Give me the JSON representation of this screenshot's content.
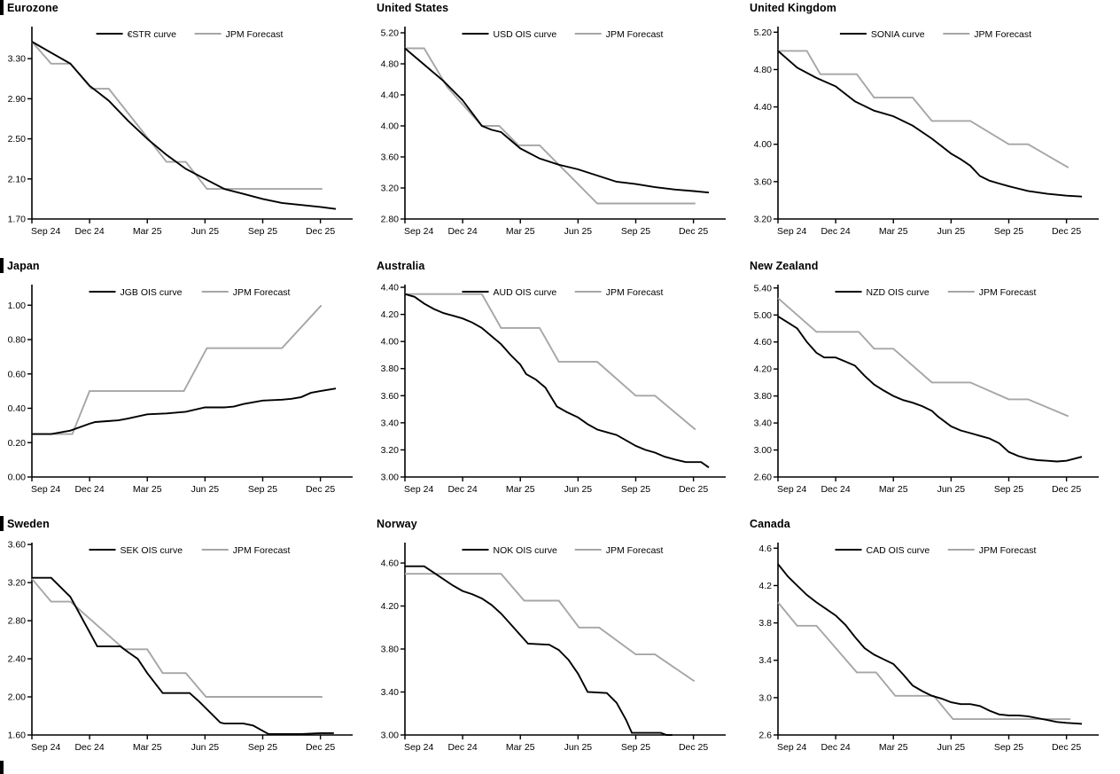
{
  "page": {
    "background": "#ffffff",
    "has_bottom_left_section_bar": true
  },
  "colors": {
    "series_market": "#000000",
    "series_forecast": "#a6a6a6",
    "axis": "#000000",
    "text": "#000000"
  },
  "x_axis": {
    "tick_labels": [
      "Sep 24",
      "Dec 24",
      "Mar 25",
      "Jun 25",
      "Sep 25",
      "Dec 25"
    ],
    "tick_positions_months": [
      0,
      3,
      6,
      9,
      12,
      15
    ],
    "xlim": [
      0,
      16.4
    ]
  },
  "chart_data": [
    {
      "type": "line",
      "title": "Eurozone",
      "has_title_bar": true,
      "ylim": [
        1.7,
        3.62
      ],
      "yticks": [
        1.7,
        2.1,
        2.5,
        2.9,
        3.3
      ],
      "ytick_decimals": 2,
      "series": [
        {
          "name": "JPM Forecast",
          "role": "forecast",
          "x": [
            0,
            1,
            2,
            3.1,
            4,
            7,
            8,
            9.1,
            15.1
          ],
          "y": [
            3.47,
            3.25,
            3.25,
            3.0,
            3.0,
            2.27,
            2.27,
            2.0,
            2.0
          ]
        },
        {
          "name": "€STR curve",
          "role": "market",
          "x": [
            0,
            1,
            2,
            3,
            4,
            5,
            6,
            7,
            8,
            9,
            10,
            11,
            12,
            13,
            14,
            15,
            15.8
          ],
          "y": [
            3.47,
            3.36,
            3.25,
            3.03,
            2.88,
            2.68,
            2.5,
            2.34,
            2.2,
            2.1,
            2.0,
            1.95,
            1.9,
            1.86,
            1.84,
            1.82,
            1.8
          ]
        }
      ]
    },
    {
      "type": "line",
      "title": "United States",
      "has_title_bar": false,
      "ylim": [
        2.8,
        5.28
      ],
      "yticks": [
        2.8,
        3.2,
        3.6,
        4.0,
        4.4,
        4.8,
        5.2
      ],
      "ytick_decimals": 2,
      "series": [
        {
          "name": "JPM Forecast",
          "role": "forecast",
          "x": [
            0,
            1,
            2.2,
            4,
            4.9,
            5.9,
            7,
            10,
            15.1
          ],
          "y": [
            5.0,
            5.0,
            4.5,
            4.0,
            4.0,
            3.75,
            3.75,
            3.0,
            3.0
          ]
        },
        {
          "name": "USD OIS curve",
          "role": "market",
          "x": [
            0,
            1,
            2,
            3,
            4,
            4.5,
            5,
            6,
            7,
            8,
            9,
            10,
            11,
            12,
            13,
            14,
            15,
            15.8
          ],
          "y": [
            5.0,
            4.79,
            4.58,
            4.33,
            4.0,
            3.95,
            3.92,
            3.71,
            3.58,
            3.5,
            3.44,
            3.36,
            3.28,
            3.25,
            3.21,
            3.18,
            3.16,
            3.14
          ]
        }
      ]
    },
    {
      "type": "line",
      "title": "United Kingdom",
      "has_title_bar": false,
      "ylim": [
        3.2,
        5.26
      ],
      "yticks": [
        3.2,
        3.6,
        4.0,
        4.4,
        4.8,
        5.2
      ],
      "ytick_decimals": 2,
      "series": [
        {
          "name": "JPM Forecast",
          "role": "forecast",
          "x": [
            0,
            1.5,
            2.2,
            4.1,
            5,
            7,
            8,
            10,
            12,
            13,
            15.1
          ],
          "y": [
            5.0,
            5.0,
            4.75,
            4.75,
            4.5,
            4.5,
            4.25,
            4.25,
            4.0,
            4.0,
            3.75
          ]
        },
        {
          "name": "SONIA curve",
          "role": "market",
          "x": [
            0,
            1,
            2,
            3,
            4,
            5,
            6,
            7,
            8,
            8.5,
            9,
            9.5,
            10,
            10.5,
            11,
            11.5,
            12,
            13,
            14,
            15,
            15.8
          ],
          "y": [
            5.0,
            4.82,
            4.71,
            4.62,
            4.46,
            4.36,
            4.3,
            4.2,
            4.06,
            3.98,
            3.9,
            3.84,
            3.77,
            3.66,
            3.61,
            3.58,
            3.55,
            3.5,
            3.47,
            3.45,
            3.44
          ]
        }
      ]
    },
    {
      "type": "line",
      "title": "Japan",
      "has_title_bar": true,
      "ylim": [
        0.0,
        1.12
      ],
      "yticks": [
        0.0,
        0.2,
        0.4,
        0.6,
        0.8,
        1.0
      ],
      "ytick_decimals": 2,
      "series": [
        {
          "name": "JPM Forecast",
          "role": "forecast",
          "x": [
            0,
            2.1,
            3,
            7.9,
            9.1,
            13,
            15.05
          ],
          "y": [
            0.25,
            0.25,
            0.5,
            0.5,
            0.75,
            0.75,
            1.0
          ]
        },
        {
          "name": "JGB OIS curve",
          "role": "market",
          "x": [
            0,
            1,
            2,
            3,
            3.3,
            4.5,
            5,
            6,
            7,
            8,
            9,
            10,
            10.5,
            11,
            12,
            13,
            13.5,
            14,
            14.5,
            15,
            15.8
          ],
          "y": [
            0.25,
            0.25,
            0.27,
            0.31,
            0.32,
            0.33,
            0.34,
            0.365,
            0.37,
            0.38,
            0.405,
            0.405,
            0.41,
            0.425,
            0.445,
            0.45,
            0.455,
            0.465,
            0.49,
            0.5,
            0.515
          ]
        }
      ]
    },
    {
      "type": "line",
      "title": "Australia",
      "has_title_bar": false,
      "ylim": [
        3.0,
        4.42
      ],
      "yticks": [
        3.0,
        3.2,
        3.4,
        3.6,
        3.8,
        4.0,
        4.2,
        4.4
      ],
      "ytick_decimals": 2,
      "series": [
        {
          "name": "JPM Forecast",
          "role": "forecast",
          "x": [
            0,
            4,
            5,
            7,
            8,
            10,
            12,
            13,
            15.1
          ],
          "y": [
            4.35,
            4.35,
            4.1,
            4.1,
            3.85,
            3.85,
            3.6,
            3.6,
            3.35
          ]
        },
        {
          "name": "AUD OIS curve",
          "role": "market",
          "x": [
            0,
            0.5,
            1,
            1.5,
            2,
            2.5,
            3,
            3.5,
            4,
            4.5,
            5,
            5.5,
            6,
            6.3,
            6.8,
            7.3,
            7.9,
            8.4,
            9,
            9.5,
            10,
            10.5,
            11,
            11.5,
            12,
            12.5,
            13,
            13.5,
            14,
            14.6,
            15.4,
            15.8
          ],
          "y": [
            4.35,
            4.33,
            4.28,
            4.24,
            4.21,
            4.19,
            4.17,
            4.14,
            4.1,
            4.04,
            3.98,
            3.9,
            3.83,
            3.76,
            3.72,
            3.66,
            3.52,
            3.48,
            3.44,
            3.39,
            3.35,
            3.33,
            3.31,
            3.27,
            3.23,
            3.2,
            3.18,
            3.15,
            3.13,
            3.11,
            3.11,
            3.07
          ]
        }
      ]
    },
    {
      "type": "line",
      "title": "New Zealand",
      "has_title_bar": false,
      "ylim": [
        2.6,
        5.45
      ],
      "yticks": [
        2.6,
        3.0,
        3.4,
        3.8,
        4.2,
        4.6,
        5.0,
        5.4
      ],
      "ytick_decimals": 2,
      "series": [
        {
          "name": "JPM Forecast",
          "role": "forecast",
          "x": [
            0,
            2,
            4.2,
            5,
            6,
            8,
            10,
            12,
            13,
            15.1
          ],
          "y": [
            5.25,
            4.75,
            4.75,
            4.5,
            4.5,
            4.0,
            4.0,
            3.75,
            3.75,
            3.5
          ]
        },
        {
          "name": "NZD OIS curve",
          "role": "market",
          "x": [
            0,
            0.5,
            1,
            1.5,
            2,
            2.4,
            3,
            3.5,
            4,
            4.5,
            5,
            5.5,
            6,
            6.5,
            7,
            7.5,
            8,
            8.3,
            9,
            9.5,
            10,
            10.5,
            11,
            11.5,
            12,
            12.5,
            13,
            13.5,
            14,
            14.5,
            15,
            15.4,
            15.8
          ],
          "y": [
            4.98,
            4.89,
            4.8,
            4.6,
            4.44,
            4.37,
            4.37,
            4.31,
            4.25,
            4.1,
            3.97,
            3.88,
            3.8,
            3.74,
            3.7,
            3.65,
            3.58,
            3.5,
            3.35,
            3.29,
            3.25,
            3.21,
            3.17,
            3.1,
            2.97,
            2.91,
            2.87,
            2.85,
            2.84,
            2.83,
            2.84,
            2.87,
            2.9
          ]
        }
      ]
    },
    {
      "type": "line",
      "title": "Sweden",
      "has_title_bar": true,
      "ylim": [
        1.6,
        3.62
      ],
      "yticks": [
        1.6,
        2.0,
        2.4,
        2.8,
        3.2,
        3.6
      ],
      "ytick_decimals": 2,
      "series": [
        {
          "name": "JPM Forecast",
          "role": "forecast",
          "x": [
            0,
            1,
            2,
            4.8,
            6,
            6.8,
            8,
            9.05,
            15.1
          ],
          "y": [
            3.24,
            3.0,
            3.0,
            2.5,
            2.5,
            2.25,
            2.25,
            2.0,
            2.0
          ]
        },
        {
          "name": "SEK OIS curve",
          "role": "market",
          "x": [
            0,
            1,
            2,
            3,
            3.4,
            4.6,
            5,
            5.5,
            6,
            6.8,
            8.2,
            8.7,
            9.3,
            9.8,
            10,
            11,
            11.5,
            12.3,
            13,
            14,
            15,
            15.7
          ],
          "y": [
            3.25,
            3.25,
            3.05,
            2.68,
            2.53,
            2.53,
            2.47,
            2.4,
            2.25,
            2.04,
            2.04,
            1.95,
            1.83,
            1.73,
            1.72,
            1.72,
            1.7,
            1.61,
            1.61,
            1.61,
            1.62,
            1.62
          ]
        }
      ]
    },
    {
      "type": "line",
      "title": "Norway",
      "has_title_bar": false,
      "ylim": [
        3.0,
        4.79
      ],
      "yticks": [
        3.0,
        3.4,
        3.8,
        4.2,
        4.6
      ],
      "ytick_decimals": 2,
      "series": [
        {
          "name": "JPM Forecast",
          "role": "forecast",
          "x": [
            0,
            5.0,
            6.2,
            8.0,
            9.05,
            10.1,
            12,
            13,
            15.05
          ],
          "y": [
            4.5,
            4.5,
            4.25,
            4.25,
            4.0,
            4.0,
            3.75,
            3.75,
            3.5
          ]
        },
        {
          "name": "NOK OIS curve",
          "role": "market",
          "x": [
            0,
            1,
            1.5,
            2,
            2.5,
            3,
            3.5,
            4,
            4.5,
            5,
            5.5,
            6,
            6.4,
            7.5,
            8,
            8.5,
            9,
            9.5,
            10.5,
            11,
            11.5,
            11.8,
            13.3,
            13.6,
            13.9
          ],
          "y": [
            4.57,
            4.57,
            4.51,
            4.45,
            4.39,
            4.34,
            4.31,
            4.27,
            4.21,
            4.13,
            4.03,
            3.93,
            3.85,
            3.84,
            3.79,
            3.7,
            3.57,
            3.4,
            3.39,
            3.3,
            3.14,
            3.02,
            3.02,
            3.0,
            3.0
          ]
        }
      ]
    },
    {
      "type": "line",
      "title": "Canada",
      "has_title_bar": false,
      "ylim": [
        2.6,
        4.66
      ],
      "yticks": [
        2.6,
        3.0,
        3.4,
        3.8,
        4.2,
        4.6
      ],
      "ytick_decimals": 1,
      "series": [
        {
          "name": "JPM Forecast",
          "role": "forecast",
          "x": [
            0,
            1,
            2,
            4.1,
            5.1,
            6.1,
            8.1,
            9.1,
            15.2
          ],
          "y": [
            4.02,
            3.77,
            3.77,
            3.27,
            3.27,
            3.02,
            3.02,
            2.77,
            2.77
          ]
        },
        {
          "name": "CAD OIS curve",
          "role": "market",
          "x": [
            0,
            0.5,
            1,
            1.5,
            2,
            2.5,
            3,
            3.5,
            4,
            4.5,
            5,
            5.5,
            6,
            6.5,
            7,
            7.5,
            8,
            8.5,
            9,
            9.5,
            10,
            10.5,
            11,
            11.5,
            12,
            12.5,
            13,
            13.5,
            14,
            14.5,
            15,
            15.8
          ],
          "y": [
            4.43,
            4.3,
            4.2,
            4.1,
            4.02,
            3.95,
            3.88,
            3.78,
            3.65,
            3.53,
            3.46,
            3.41,
            3.36,
            3.25,
            3.13,
            3.07,
            3.02,
            2.99,
            2.95,
            2.93,
            2.93,
            2.91,
            2.86,
            2.82,
            2.81,
            2.81,
            2.8,
            2.78,
            2.76,
            2.74,
            2.73,
            2.72
          ]
        }
      ]
    }
  ]
}
